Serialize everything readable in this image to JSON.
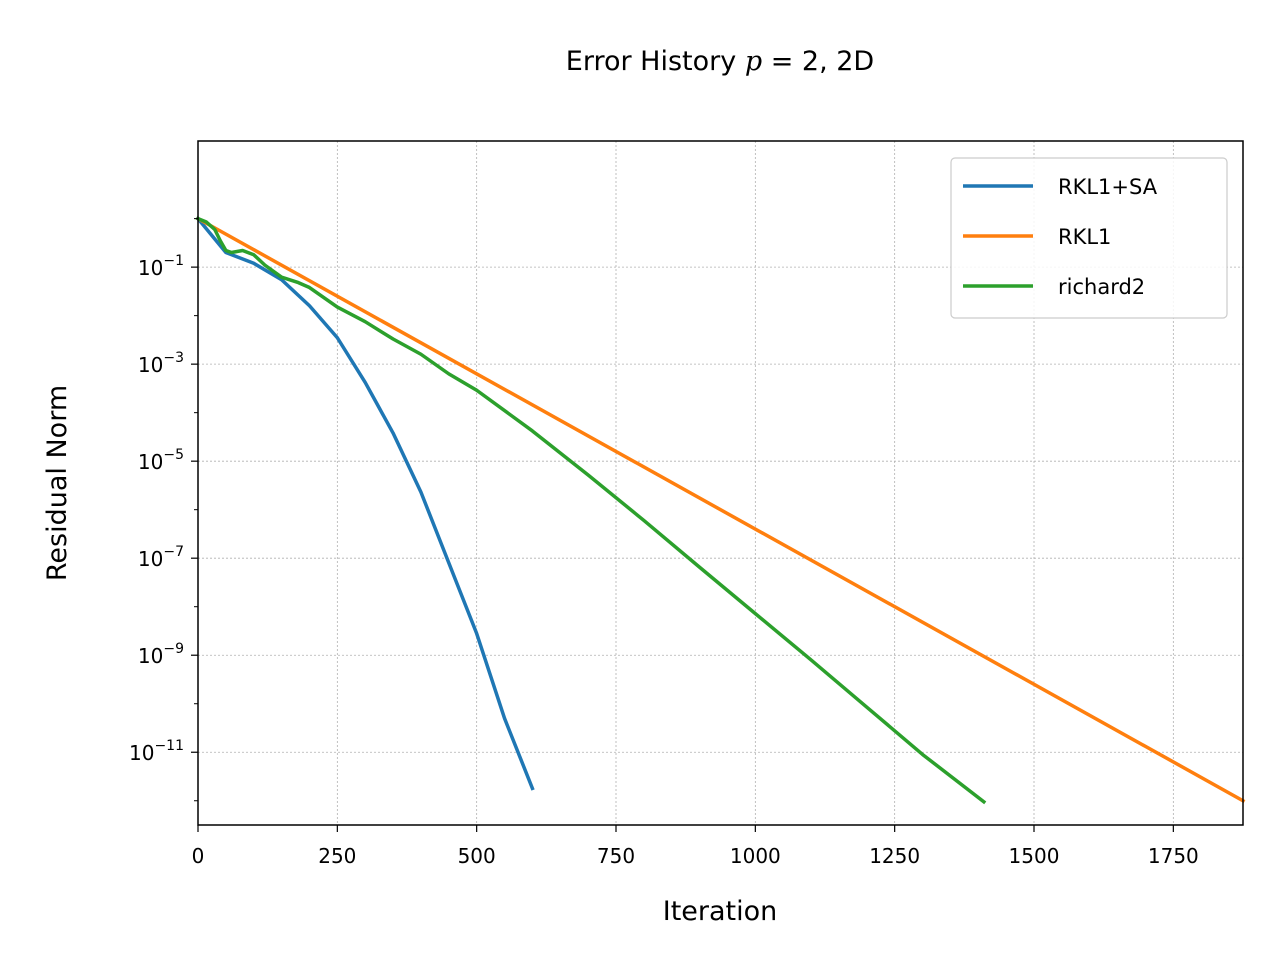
{
  "chart_data": {
    "type": "line",
    "title_prefix": "Error History ",
    "title_math": "p",
    "title_suffix": " = 2, 2D",
    "xlabel": "Iteration",
    "ylabel": "Residual Norm",
    "xlim": [
      0,
      1875
    ],
    "ylim_log10": [
      -12.5,
      1.6
    ],
    "log_scale_y": true,
    "grid": true,
    "legend_position": "top-right",
    "x_ticks": [
      0,
      250,
      500,
      750,
      1000,
      1250,
      1500,
      1750
    ],
    "x_tick_labels": [
      "0",
      "250",
      "500",
      "750",
      "1000",
      "1250",
      "1500",
      "1750"
    ],
    "y_tick_exponents": [
      -1,
      -3,
      -5,
      -7,
      -9,
      -11
    ],
    "y_tick_base": "10",
    "y_tick_sups": [
      "−1",
      "−3",
      "−5",
      "−7",
      "−9",
      "−11"
    ],
    "series": [
      {
        "name": "RKL1+SA",
        "color": "#1f77b4",
        "x": [
          0,
          50,
          100,
          150,
          200,
          250,
          300,
          350,
          400,
          450,
          500,
          550,
          600
        ],
        "y": [
          1.0,
          0.2,
          0.12,
          0.055,
          0.016,
          0.0035,
          0.00042,
          3.8e-05,
          2.3e-06,
          8e-08,
          2.8e-09,
          5e-11,
          1.8e-12
        ]
      },
      {
        "name": "RKL1",
        "color": "#ff7f0e",
        "x": [
          0,
          1875
        ],
        "y": [
          1.0,
          1e-12
        ]
      },
      {
        "name": "richard2",
        "color": "#2ca02c",
        "x": [
          0,
          15,
          30,
          40,
          50,
          60,
          80,
          100,
          120,
          150,
          180,
          200,
          250,
          300,
          350,
          400,
          450,
          500,
          600,
          700,
          800,
          900,
          1000,
          1100,
          1200,
          1300,
          1410
        ],
        "y": [
          1.0,
          0.85,
          0.6,
          0.35,
          0.22,
          0.2,
          0.22,
          0.18,
          0.11,
          0.062,
          0.048,
          0.038,
          0.015,
          0.0075,
          0.0033,
          0.0016,
          0.00063,
          0.00029,
          4.2e-05,
          5.2e-06,
          6e-07,
          6.5e-08,
          7.2e-09,
          8e-10,
          8.5e-11,
          9e-12,
          9.5e-13
        ]
      }
    ]
  }
}
